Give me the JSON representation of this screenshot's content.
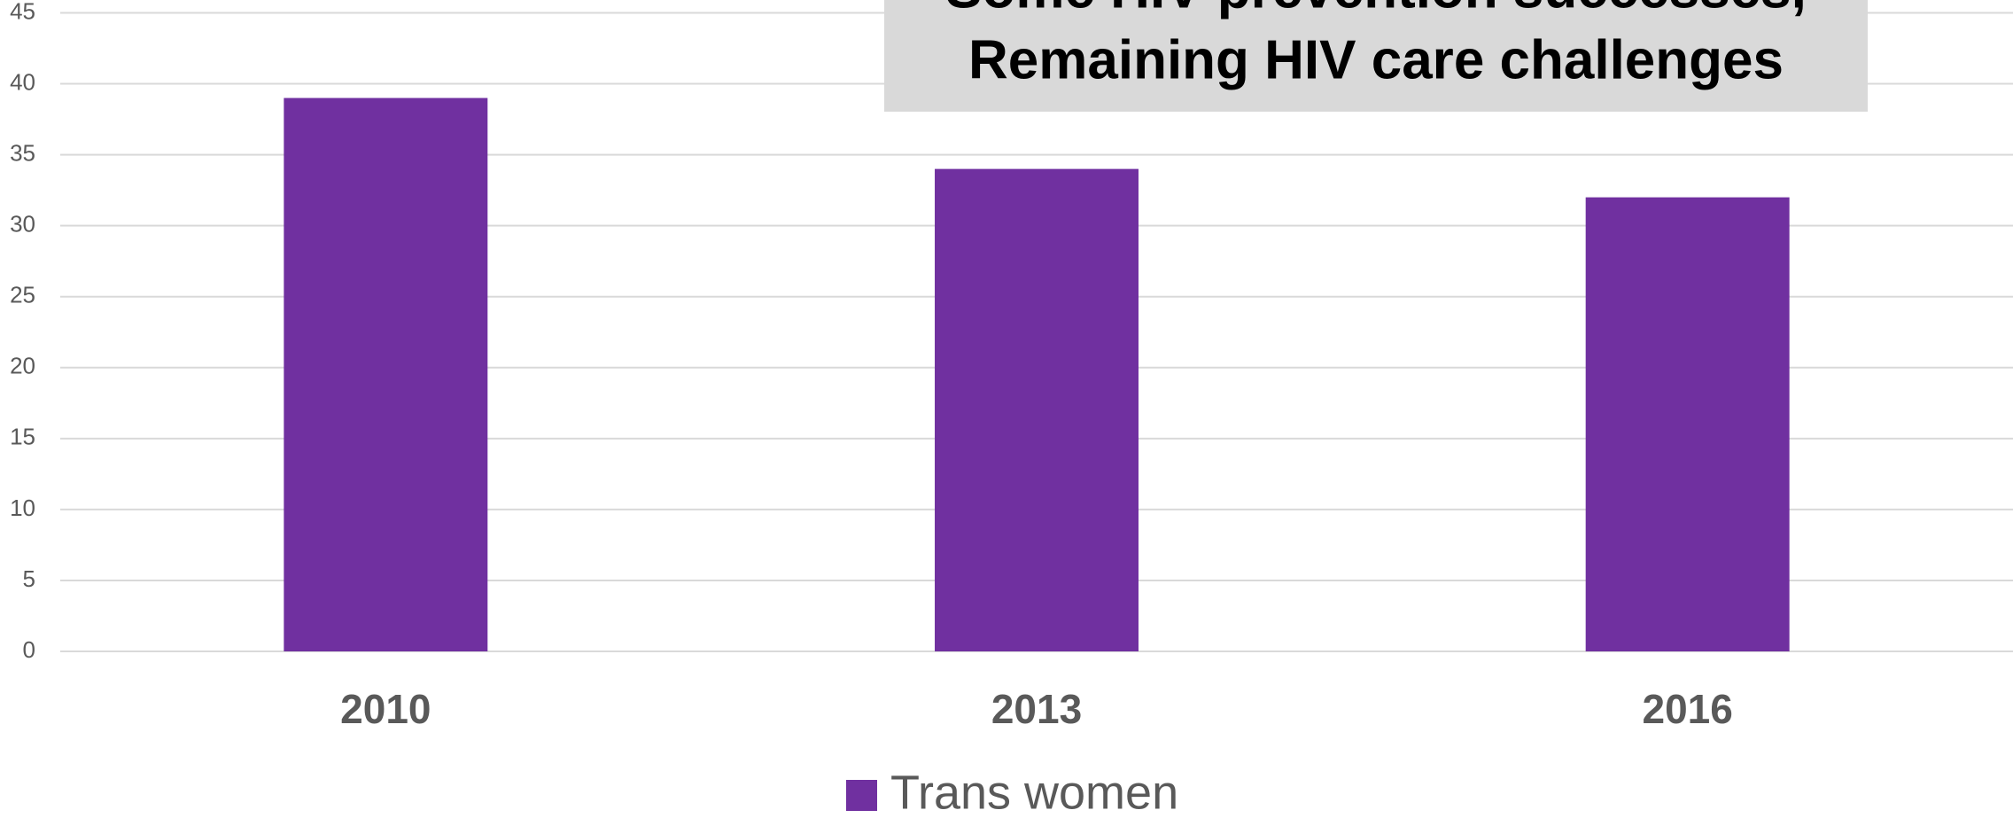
{
  "chart_data": {
    "type": "bar",
    "title": [
      "Some HIV prevention successes,",
      "Remaining HIV care challenges"
    ],
    "categories": [
      "2010",
      "2013",
      "2016"
    ],
    "series": [
      {
        "name": "Trans women",
        "color": "#7030a0",
        "values": [
          39,
          34,
          32
        ]
      }
    ],
    "ylim": [
      0,
      45
    ],
    "yticks": [
      0,
      5,
      10,
      15,
      20,
      25,
      30,
      35,
      40,
      45
    ],
    "grid": true,
    "legend": "bottom"
  }
}
